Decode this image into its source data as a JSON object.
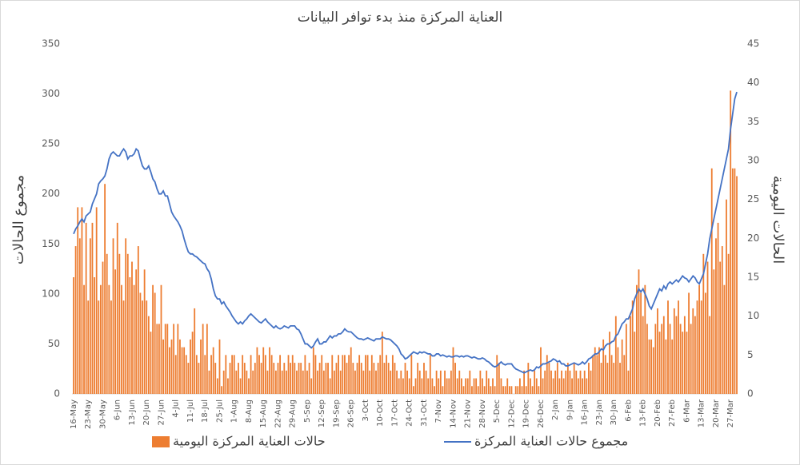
{
  "chart_data": {
    "type": "combo",
    "title": "العناية المركزة منذ بدء توافر البيانات",
    "y_label": "مجموع الحالات",
    "y2_label": "الحالات اليومية",
    "ylim": [
      0,
      350
    ],
    "yticks": [
      0,
      50,
      100,
      150,
      200,
      250,
      300,
      350
    ],
    "y2lim": [
      0,
      45
    ],
    "y2ticks": [
      0,
      5,
      10,
      15,
      20,
      25,
      30,
      35,
      40,
      45
    ],
    "categories": [
      "16-May",
      null,
      null,
      null,
      null,
      null,
      null,
      "23-May",
      null,
      null,
      null,
      null,
      null,
      null,
      "30-May",
      null,
      null,
      null,
      null,
      null,
      null,
      "6-Jun",
      null,
      null,
      null,
      null,
      null,
      null,
      "13-Jun",
      null,
      null,
      null,
      null,
      null,
      null,
      "20-Jun",
      null,
      null,
      null,
      null,
      null,
      null,
      "27-Jun",
      null,
      null,
      null,
      null,
      null,
      null,
      "4-Jul",
      null,
      null,
      null,
      null,
      null,
      null,
      "11-Jul",
      null,
      null,
      null,
      null,
      null,
      null,
      "18-Jul",
      null,
      null,
      null,
      null,
      null,
      null,
      "25-Jul",
      null,
      null,
      null,
      null,
      null,
      null,
      "1-Aug",
      null,
      null,
      null,
      null,
      null,
      null,
      "8-Aug",
      null,
      null,
      null,
      null,
      null,
      null,
      "15-Aug",
      null,
      null,
      null,
      null,
      null,
      null,
      "22-Aug",
      null,
      null,
      null,
      null,
      null,
      null,
      "29-Aug",
      null,
      null,
      null,
      null,
      null,
      null,
      "5-Sep",
      null,
      null,
      null,
      null,
      null,
      null,
      "12-Sep",
      null,
      null,
      null,
      null,
      null,
      null,
      "19-Sep",
      null,
      null,
      null,
      null,
      null,
      null,
      "26-Sep",
      null,
      null,
      null,
      null,
      null,
      null,
      "3-Oct",
      null,
      null,
      null,
      null,
      null,
      null,
      "10-Oct",
      null,
      null,
      null,
      null,
      null,
      null,
      "17-Oct",
      null,
      null,
      null,
      null,
      null,
      null,
      "24-Oct",
      null,
      null,
      null,
      null,
      null,
      null,
      "31-Oct",
      null,
      null,
      null,
      null,
      null,
      null,
      "7-Nov",
      null,
      null,
      null,
      null,
      null,
      null,
      "14-Nov",
      null,
      null,
      null,
      null,
      null,
      null,
      "21-Nov",
      null,
      null,
      null,
      null,
      null,
      null,
      "28-Nov",
      null,
      null,
      null,
      null,
      null,
      null,
      "5-Dec",
      null,
      null,
      null,
      null,
      null,
      null,
      "12-Dec",
      null,
      null,
      null,
      null,
      null,
      null,
      "19-Dec",
      null,
      null,
      null,
      null,
      null,
      null,
      "26-Dec",
      null,
      null,
      null,
      null,
      null,
      null,
      "2-Jan",
      null,
      null,
      null,
      null,
      null,
      null,
      "9-Jan",
      null,
      null,
      null,
      null,
      null,
      null,
      "16-Jan",
      null,
      null,
      null,
      null,
      null,
      null,
      "23-Jan",
      null,
      null,
      null,
      null,
      null,
      null,
      "30-Jan",
      null,
      null,
      null,
      null,
      null,
      null,
      "6-Feb",
      null,
      null,
      null,
      null,
      null,
      null,
      "13-Feb",
      null,
      null,
      null,
      null,
      null,
      null,
      "20-Feb",
      null,
      null,
      null,
      null,
      null,
      null,
      "27-Feb",
      null,
      null,
      null,
      null,
      null,
      null,
      "6-Mar",
      null,
      null,
      null,
      null,
      null,
      null,
      "13-Mar",
      null,
      null,
      null,
      null,
      null,
      null,
      "20-Mar",
      null,
      null,
      null,
      null,
      null,
      null,
      "27-Mar",
      null,
      null,
      null
    ],
    "series": [
      {
        "name": "حالات العناية المركزة اليومية",
        "type": "bar",
        "axis": "y2",
        "color": "#ed7d31",
        "values": [
          15,
          19,
          24,
          20,
          24,
          14,
          22,
          12,
          20,
          22,
          15,
          24,
          12,
          14,
          17,
          27,
          18,
          14,
          12,
          20,
          16,
          22,
          18,
          14,
          12,
          20,
          18,
          15,
          17,
          14,
          16,
          19,
          13,
          12,
          16,
          12,
          10,
          8,
          14,
          13,
          9,
          9,
          14,
          7,
          9,
          9,
          6,
          7,
          9,
          5,
          9,
          7,
          6,
          6,
          5,
          4,
          7,
          8,
          11,
          5,
          4,
          7,
          9,
          5,
          9,
          3,
          5,
          6,
          4,
          2,
          7,
          1,
          3,
          5,
          2,
          4,
          5,
          5,
          3,
          4,
          2,
          5,
          4,
          3,
          2,
          5,
          3,
          4,
          6,
          5,
          4,
          6,
          5,
          3,
          6,
          5,
          4,
          3,
          4,
          5,
          3,
          4,
          3,
          5,
          4,
          5,
          4,
          3,
          4,
          4,
          3,
          5,
          3,
          4,
          2,
          6,
          5,
          3,
          4,
          5,
          3,
          4,
          4,
          2,
          5,
          3,
          4,
          5,
          3,
          5,
          5,
          4,
          5,
          6,
          4,
          3,
          4,
          5,
          4,
          3,
          5,
          5,
          3,
          5,
          4,
          3,
          4,
          5,
          8,
          4,
          5,
          4,
          3,
          5,
          4,
          3,
          2,
          3,
          2,
          4,
          3,
          2,
          5,
          1,
          2,
          4,
          3,
          2,
          4,
          3,
          2,
          5,
          2,
          1,
          3,
          2,
          3,
          1,
          3,
          2,
          2,
          3,
          6,
          4,
          2,
          3,
          2,
          1,
          2,
          2,
          3,
          1,
          2,
          2,
          1,
          3,
          2,
          1,
          3,
          2,
          1,
          2,
          1,
          5,
          4,
          2,
          1,
          1,
          2,
          1,
          1,
          0,
          1,
          1,
          2,
          1,
          3,
          1,
          4,
          2,
          1,
          3,
          2,
          1,
          6,
          2,
          3,
          5,
          4,
          3,
          2,
          3,
          4,
          2,
          3,
          2,
          3,
          4,
          3,
          2,
          4,
          3,
          2,
          3,
          2,
          3,
          2,
          4,
          3,
          5,
          6,
          5,
          6,
          4,
          7,
          5,
          4,
          8,
          5,
          4,
          10,
          6,
          4,
          7,
          5,
          9,
          3,
          10,
          12,
          8,
          14,
          16,
          13,
          10,
          14,
          9,
          7,
          7,
          6,
          9,
          11,
          8,
          9,
          10,
          7,
          12,
          9,
          7,
          11,
          10,
          12,
          9,
          8,
          10,
          8,
          13,
          9,
          11,
          10,
          12,
          14,
          12,
          18,
          13,
          17,
          10,
          29,
          16,
          20,
          22,
          17,
          19,
          14,
          25,
          18,
          39,
          29,
          29,
          28
        ]
      },
      {
        "name": "مجموع حالات العناية المركزة",
        "type": "line",
        "axis": "y",
        "color": "#4472c4",
        "values": [
          160,
          165,
          168,
          172,
          175,
          172,
          178,
          180,
          182,
          190,
          195,
          200,
          210,
          213,
          215,
          218,
          225,
          235,
          240,
          242,
          240,
          238,
          238,
          242,
          245,
          242,
          235,
          238,
          238,
          240,
          245,
          243,
          235,
          228,
          225,
          225,
          228,
          222,
          215,
          212,
          205,
          200,
          200,
          203,
          198,
          198,
          190,
          182,
          178,
          175,
          172,
          168,
          163,
          155,
          148,
          142,
          140,
          140,
          138,
          137,
          135,
          133,
          131,
          130,
          125,
          122,
          115,
          105,
          98,
          95,
          95,
          90,
          92,
          88,
          85,
          82,
          78,
          75,
          72,
          70,
          72,
          70,
          73,
          75,
          78,
          80,
          78,
          76,
          74,
          72,
          71,
          73,
          75,
          72,
          70,
          68,
          66,
          68,
          66,
          65,
          66,
          68,
          67,
          66,
          68,
          68,
          68,
          65,
          64,
          60,
          55,
          50,
          50,
          48,
          46,
          48,
          52,
          55,
          50,
          50,
          52,
          52,
          55,
          58,
          56,
          58,
          58,
          60,
          60,
          62,
          65,
          63,
          62,
          62,
          60,
          58,
          56,
          55,
          55,
          54,
          55,
          56,
          55,
          54,
          53,
          55,
          55,
          55,
          57,
          56,
          55,
          55,
          54,
          52,
          50,
          48,
          45,
          40,
          38,
          35,
          36,
          38,
          40,
          42,
          41,
          40,
          42,
          41,
          42,
          41,
          40,
          40,
          38,
          38,
          40,
          40,
          38,
          39,
          38,
          37,
          38,
          37,
          37,
          38,
          38,
          37,
          38,
          37,
          38,
          38,
          37,
          36,
          37,
          36,
          35,
          35,
          36,
          35,
          33,
          32,
          30,
          28,
          27,
          28,
          30,
          32,
          30,
          29,
          30,
          30,
          30,
          27,
          25,
          24,
          23,
          22,
          21,
          22,
          23,
          24,
          23,
          24,
          27,
          26,
          28,
          30,
          30,
          31,
          32,
          33,
          35,
          34,
          32,
          33,
          30,
          30,
          28,
          28,
          29,
          30,
          31,
          30,
          29,
          30,
          32,
          30,
          32,
          35,
          36,
          38,
          40,
          40,
          42,
          45,
          44,
          48,
          50,
          50,
          52,
          53,
          58,
          60,
          65,
          70,
          72,
          75,
          75,
          80,
          85,
          95,
          100,
          105,
          102,
          105,
          100,
          95,
          88,
          85,
          90,
          95,
          100,
          105,
          103,
          108,
          105,
          110,
          112,
          110,
          112,
          114,
          112,
          115,
          118,
          116,
          115,
          112,
          115,
          118,
          116,
          112,
          110,
          115,
          120,
          130,
          140,
          155,
          165,
          175,
          185,
          195,
          205,
          215,
          225,
          235,
          245,
          265,
          280,
          295,
          302
        ]
      }
    ]
  }
}
